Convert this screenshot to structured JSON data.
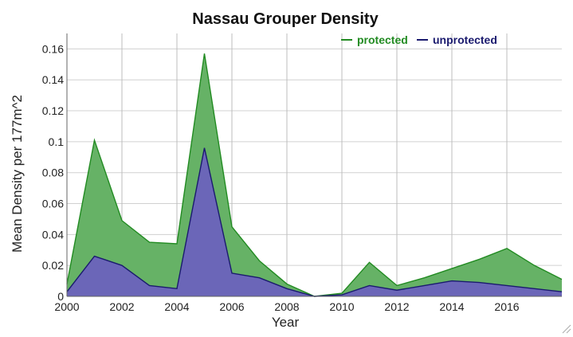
{
  "chart_data": {
    "type": "area",
    "title": "Nassau Grouper Density",
    "xlabel": "Year",
    "ylabel": "Mean Density per 177m^2",
    "x": [
      2000,
      2001,
      2002,
      2003,
      2004,
      2005,
      2006,
      2007,
      2008,
      2009,
      2010,
      2011,
      2012,
      2013,
      2014,
      2015,
      2016,
      2017,
      2018
    ],
    "xlim": [
      2000,
      2018
    ],
    "ylim": [
      0,
      0.17
    ],
    "x_ticks": [
      "2000",
      "2002",
      "2004",
      "2006",
      "2008",
      "2010",
      "2012",
      "2014",
      "2016"
    ],
    "y_ticks": [
      "0",
      "0.02",
      "0.04",
      "0.06",
      "0.08",
      "0.1",
      "0.12",
      "0.14",
      "0.16"
    ],
    "grid": true,
    "legend_position": "top-right",
    "series": [
      {
        "name": "protected",
        "color": "#228b22",
        "fill": "#66b266",
        "values": [
          0.008,
          0.101,
          0.049,
          0.035,
          0.034,
          0.157,
          0.045,
          0.023,
          0.008,
          0.0,
          0.002,
          0.022,
          0.007,
          0.012,
          0.018,
          0.024,
          0.031,
          0.02,
          0.011
        ]
      },
      {
        "name": "unprotected",
        "color": "#1a1a6e",
        "fill": "#6b66b8",
        "values": [
          0.003,
          0.026,
          0.02,
          0.007,
          0.005,
          0.096,
          0.015,
          0.012,
          0.005,
          0.0,
          0.001,
          0.007,
          0.004,
          0.007,
          0.01,
          0.009,
          0.007,
          0.005,
          0.003
        ]
      }
    ]
  }
}
